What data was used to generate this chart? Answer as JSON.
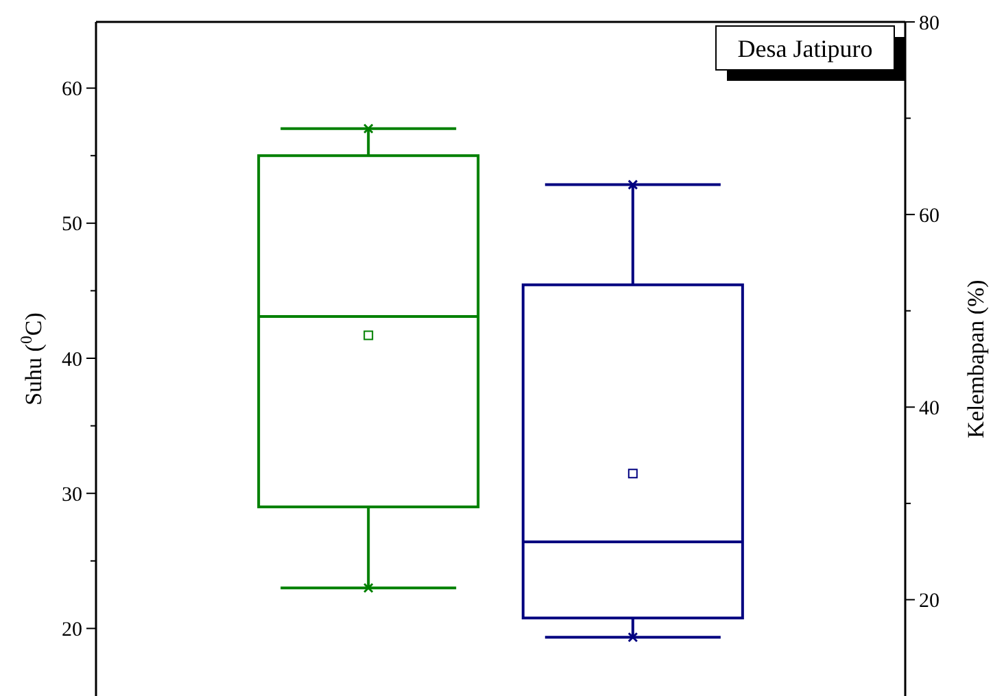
{
  "chart_data": {
    "type": "box",
    "categories": [
      null,
      null
    ],
    "ylabel": "Suhu ($^{0}$C)",
    "y2label": "Kelembapan (%)",
    "ylim": [
      15,
      64.9
    ],
    "yticks": [
      20,
      {
        "value": 25,
        "label": null
      },
      30,
      {
        "value": 35,
        "label": null
      },
      40,
      {
        "value": 45,
        "label": null
      },
      50,
      {
        "value": 55,
        "label": null
      },
      60
    ],
    "y2lim": [
      10,
      80
    ],
    "y2ticks": [
      20,
      {
        "value": 30,
        "label": null
      },
      40,
      {
        "value": 50,
        "label": null
      },
      60,
      {
        "value": 70,
        "label": null
      },
      80
    ],
    "annotations": [
      "Desa Jatipuro"
    ],
    "marker": "square",
    "series": [
      {
        "color": "#008000",
        "boxes": [
          {
            "low": 23,
            "q1": 29,
            "median": 43.1,
            "q3": 55,
            "high": 57,
            "mean": 41.7,
            "outliers": [
              57,
              23
            ]
          },
          null
        ]
      },
      {
        "color": "#000080",
        "axis": "y2",
        "boxes": [
          null,
          {
            "low": 16.1,
            "q1": 18.1,
            "median": 26,
            "q3": 52.7,
            "high": 63.1,
            "mean": 33.1,
            "outliers": [
              63.1,
              16.1
            ]
          }
        ]
      }
    ]
  }
}
